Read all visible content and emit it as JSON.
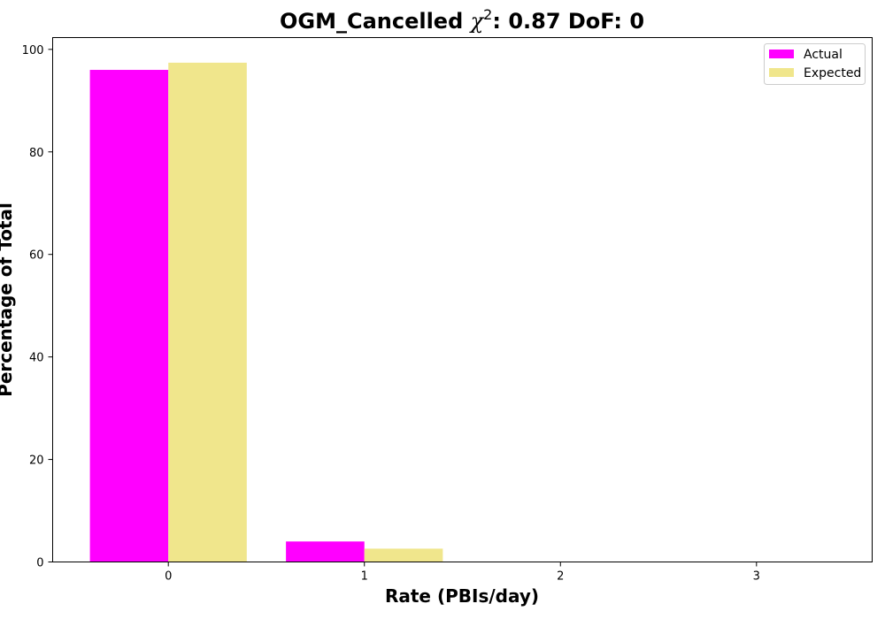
{
  "chart_data": {
    "type": "bar",
    "title": "OGM_Cancelled",
    "title_chi_symbol": "χ",
    "title_chi_exponent": "2",
    "title_suffix": ": 0.87 DoF: 0",
    "xlabel": "Rate (PBIs/day)",
    "ylabel": "Percentage of Total",
    "categories": [
      "0",
      "1",
      "2",
      "3"
    ],
    "x": [
      0,
      1,
      2,
      3
    ],
    "series": [
      {
        "name": "Actual",
        "color": "#ff00ff",
        "values": [
          96.0,
          4.0,
          0,
          0
        ]
      },
      {
        "name": "Expected",
        "color": "#f0e68c",
        "values": [
          97.4,
          2.6,
          0,
          0
        ]
      }
    ],
    "xlim": [
      -0.59,
      3.59
    ],
    "ylim": [
      0,
      102.3
    ],
    "yticks": [
      0,
      20,
      40,
      60,
      80,
      100
    ],
    "legend_position": "top-right",
    "grid": false
  }
}
